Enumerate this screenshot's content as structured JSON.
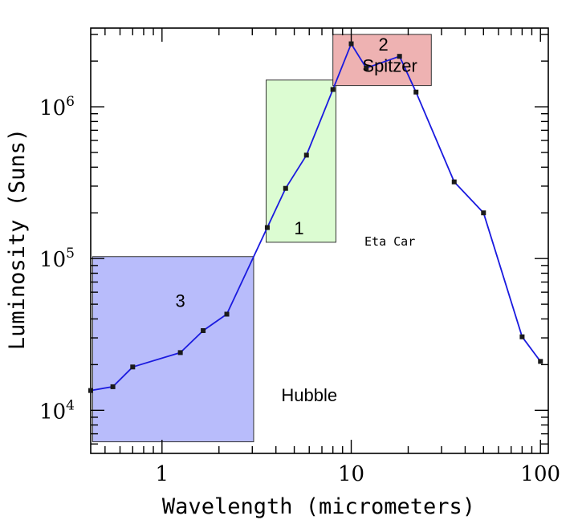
{
  "chart_data": {
    "type": "line",
    "xlabel": "Wavelength (micrometers)",
    "ylabel": "Luminosity (Suns)",
    "xscale": "log",
    "yscale": "log",
    "xlim": [
      0.42,
      110
    ],
    "ylim": [
      5200,
      3300000
    ],
    "x_ticks": [
      {
        "value": 1,
        "label": "1"
      },
      {
        "value": 10,
        "label": "10"
      },
      {
        "value": 100,
        "label": "100"
      }
    ],
    "y_ticks": [
      {
        "value": 10000,
        "base": "10",
        "exp": "4"
      },
      {
        "value": 100000,
        "base": "10",
        "exp": "5"
      },
      {
        "value": 1000000,
        "base": "10",
        "exp": "6"
      }
    ],
    "series": [
      {
        "color": "#1a1adf",
        "marker_color": "#1a1a1a",
        "points": [
          {
            "x": 0.42,
            "y": 13500
          },
          {
            "x": 0.55,
            "y": 14300
          },
          {
            "x": 0.7,
            "y": 19300
          },
          {
            "x": 1.25,
            "y": 24000
          },
          {
            "x": 1.65,
            "y": 33500
          },
          {
            "x": 2.2,
            "y": 43000
          },
          {
            "x": 3.6,
            "y": 160000
          },
          {
            "x": 4.5,
            "y": 290000
          },
          {
            "x": 5.8,
            "y": 480000
          },
          {
            "x": 8.0,
            "y": 1300000
          },
          {
            "x": 10.0,
            "y": 2600000
          },
          {
            "x": 12.0,
            "y": 1800000
          },
          {
            "x": 18.0,
            "y": 2150000
          },
          {
            "x": 22.0,
            "y": 1250000
          },
          {
            "x": 35.0,
            "y": 320000
          },
          {
            "x": 50.0,
            "y": 200000
          },
          {
            "x": 80.0,
            "y": 30500
          },
          {
            "x": 100.0,
            "y": 21000
          }
        ]
      }
    ],
    "regions": [
      {
        "label": "3",
        "x": [
          0.43,
          3.05
        ],
        "y": [
          6200,
          103000
        ],
        "fill": "#b8bcfb",
        "stroke": "#333333",
        "label_at": {
          "x": 1.25,
          "y": 48000
        }
      },
      {
        "label": "1",
        "x": [
          3.55,
          8.3
        ],
        "y": [
          128000,
          1500000
        ],
        "fill": "#dcfcd2",
        "stroke": "#333333",
        "label_at": {
          "x": 5.3,
          "y": 144000
        }
      },
      {
        "label": "2",
        "x": [
          8.0,
          26.5
        ],
        "y": [
          1380000,
          3000000
        ],
        "fill": "#eeb2b2",
        "stroke": "#333333",
        "label_at": {
          "x": 14.8,
          "y": 2350000
        }
      }
    ],
    "annotations": [
      {
        "text": "Spitzer",
        "x": 16.0,
        "y": 1700000,
        "style": "sans"
      },
      {
        "text": "Eta Car",
        "x": 16.0,
        "y": 122000,
        "style": "mono"
      },
      {
        "text": "Hubble",
        "x": 6.0,
        "y": 11500,
        "style": "sans"
      }
    ]
  }
}
